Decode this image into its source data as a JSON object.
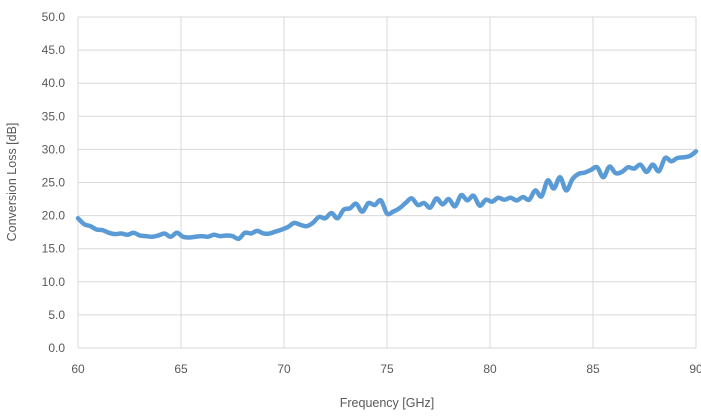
{
  "chart_data": {
    "type": "line",
    "title": "",
    "xlabel": "Frequency [GHz]",
    "ylabel": "Conversion Loss [dB]",
    "xlim": [
      60,
      90
    ],
    "ylim": [
      0,
      50
    ],
    "x_ticks": [
      60,
      65,
      70,
      75,
      80,
      85,
      90
    ],
    "x_tick_labels": [
      "60",
      "65",
      "70",
      "75",
      "80",
      "85",
      "90"
    ],
    "y_ticks": [
      0,
      5,
      10,
      15,
      20,
      25,
      30,
      35,
      40,
      45,
      50
    ],
    "y_tick_labels": [
      "0.0",
      "5.0",
      "10.0",
      "15.0",
      "20.0",
      "25.0",
      "30.0",
      "35.0",
      "40.0",
      "45.0",
      "50.0"
    ],
    "grid": true,
    "legend": "none",
    "line_color": "#5b9bd5",
    "grid_color": "#d9d9d9",
    "series": [
      {
        "x": [
          60.0,
          60.3,
          60.6,
          60.9,
          61.2,
          61.5,
          61.8,
          62.1,
          62.4,
          62.7,
          63.0,
          63.3,
          63.6,
          63.9,
          64.2,
          64.5,
          64.8,
          65.1,
          65.4,
          65.7,
          66.0,
          66.3,
          66.6,
          66.9,
          67.2,
          67.5,
          67.8,
          68.1,
          68.4,
          68.7,
          69.0,
          69.3,
          69.6,
          69.9,
          70.2,
          70.5,
          70.8,
          71.1,
          71.4,
          71.7,
          72.0,
          72.3,
          72.6,
          72.9,
          73.2,
          73.5,
          73.8,
          74.1,
          74.4,
          74.7,
          75.0,
          75.3,
          75.6,
          75.9,
          76.2,
          76.5,
          76.8,
          77.1,
          77.4,
          77.7,
          78.0,
          78.3,
          78.6,
          78.9,
          79.2,
          79.5,
          79.8,
          80.1,
          80.4,
          80.7,
          81.0,
          81.3,
          81.6,
          81.9,
          82.2,
          82.5,
          82.8,
          83.1,
          83.4,
          83.7,
          84.0,
          84.3,
          84.6,
          84.9,
          85.2,
          85.5,
          85.8,
          86.1,
          86.4,
          86.7,
          87.0,
          87.3,
          87.6,
          87.9,
          88.2,
          88.5,
          88.8,
          89.1,
          89.4,
          89.7,
          90.0
        ],
        "y": [
          19.6,
          18.7,
          18.4,
          17.9,
          17.8,
          17.4,
          17.2,
          17.3,
          17.1,
          17.4,
          17.0,
          16.9,
          16.8,
          17.0,
          17.3,
          16.8,
          17.4,
          16.8,
          16.7,
          16.8,
          16.9,
          16.8,
          17.1,
          16.9,
          17.0,
          16.9,
          16.5,
          17.4,
          17.3,
          17.7,
          17.3,
          17.3,
          17.6,
          17.9,
          18.3,
          18.9,
          18.6,
          18.4,
          18.9,
          19.8,
          19.6,
          20.4,
          19.6,
          20.9,
          21.1,
          21.8,
          20.6,
          21.9,
          21.6,
          22.3,
          20.3,
          20.6,
          21.1,
          21.9,
          22.6,
          21.6,
          21.9,
          21.2,
          22.6,
          21.7,
          22.5,
          21.4,
          23.1,
          22.3,
          23.0,
          21.5,
          22.4,
          22.1,
          22.7,
          22.4,
          22.7,
          22.3,
          22.8,
          22.4,
          23.8,
          22.9,
          25.3,
          24.1,
          25.8,
          23.8,
          25.5,
          26.3,
          26.5,
          26.9,
          27.3,
          25.8,
          27.4,
          26.4,
          26.6,
          27.3,
          27.1,
          27.7,
          26.6,
          27.7,
          26.7,
          28.7,
          28.2,
          28.7,
          28.8,
          29.0,
          29.7
        ]
      }
    ]
  }
}
